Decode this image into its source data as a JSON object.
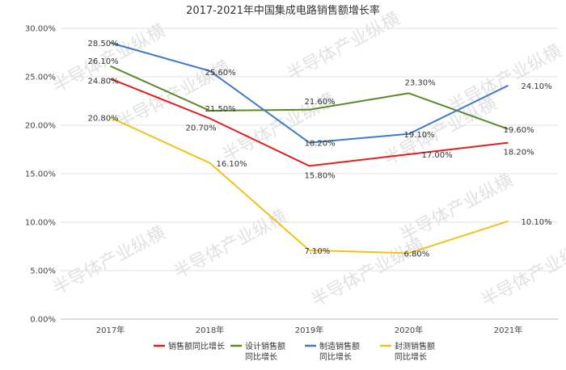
{
  "chart_data": {
    "type": "line",
    "title": "2017-2021年中国集成电路销售额增长率",
    "categories": [
      "2017年",
      "2018年",
      "2019年",
      "2020年",
      "2021年"
    ],
    "ylim": [
      0,
      30
    ],
    "yticks": [
      "0.00%",
      "5.00%",
      "10.00%",
      "15.00%",
      "20.00%",
      "25.00%",
      "30.00%"
    ],
    "grid": true,
    "legend_position": "bottom",
    "series": [
      {
        "name_lines": [
          "销售额同比增长"
        ],
        "color": "#e02020",
        "values": [
          24.8,
          20.7,
          15.8,
          17.0,
          18.2
        ],
        "labels": [
          "24.80%",
          "20.70%",
          "15.80%",
          "17.00%",
          "18.20%"
        ]
      },
      {
        "name_lines": [
          "设计销售额",
          "同比增长"
        ],
        "color": "#5a8a2c",
        "values": [
          26.1,
          21.5,
          21.6,
          23.3,
          19.6
        ],
        "labels": [
          "26.10%",
          "21.50%",
          "21.60%",
          "23.30%",
          "19.60%"
        ]
      },
      {
        "name_lines": [
          "制造销售额",
          "同比增长"
        ],
        "color": "#3f7cc4",
        "values": [
          28.5,
          25.6,
          18.2,
          19.1,
          24.1
        ],
        "labels": [
          "28.50%",
          "25.60%",
          "18.20%",
          "19.10%",
          "24.10%"
        ]
      },
      {
        "name_lines": [
          "封测销售额",
          "同比增长"
        ],
        "color": "#f2c21a",
        "values": [
          20.8,
          16.1,
          7.1,
          6.8,
          10.1
        ],
        "labels": [
          "20.80%",
          "16.10%",
          "7.10%",
          "6.80%",
          "10.10%"
        ]
      }
    ]
  },
  "watermark": "半导体产业纵横"
}
